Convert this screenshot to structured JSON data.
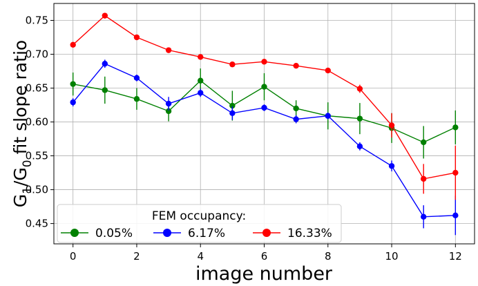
{
  "chart_data": {
    "type": "line",
    "xlabel": "image number",
    "ylabel": "G₁/G₀ fit slope ratio",
    "ylabel_parts": {
      "g1_base": "G",
      "g1_sub": "1",
      "sep": "/",
      "g0_base": "G",
      "g0_sub": "0",
      "rest": " fit slope ratio"
    },
    "xlim": [
      -0.6,
      12.6
    ],
    "ylim": [
      0.42,
      0.775
    ],
    "grid": true,
    "x": [
      0,
      1,
      2,
      3,
      4,
      5,
      6,
      7,
      8,
      9,
      10,
      11,
      12
    ],
    "xticks": [
      0,
      2,
      4,
      6,
      8,
      10,
      12
    ],
    "yticks": [
      0.45,
      0.5,
      0.55,
      0.6,
      0.65,
      0.7,
      0.75
    ],
    "legend": {
      "title": "FEM occupancy:",
      "placement": "lower-left",
      "ncol": 3
    },
    "series": [
      {
        "name": "0.05%",
        "color": "#008000",
        "values": [
          0.656,
          0.647,
          0.634,
          0.616,
          0.661,
          0.624,
          0.652,
          0.62,
          0.609,
          0.605,
          0.591,
          0.57,
          0.592
        ],
        "errors": [
          0.017,
          0.02,
          0.016,
          0.015,
          0.018,
          0.022,
          0.02,
          0.012,
          0.02,
          0.023,
          0.022,
          0.024,
          0.025
        ]
      },
      {
        "name": "6.17%",
        "color": "#0000ff",
        "values": [
          0.629,
          0.686,
          0.665,
          0.627,
          0.643,
          0.613,
          0.621,
          0.604,
          0.609,
          0.564,
          0.535,
          0.46,
          0.462
        ],
        "errors": [
          0.006,
          0.006,
          0.005,
          0.01,
          0.006,
          0.01,
          0.005,
          0.006,
          0.005,
          0.006,
          0.008,
          0.017,
          0.029
        ]
      },
      {
        "name": "16.33%",
        "color": "#ff0000",
        "values": [
          0.714,
          0.757,
          0.725,
          0.706,
          0.696,
          0.685,
          0.689,
          0.683,
          0.676,
          0.649,
          0.595,
          0.516,
          0.525
        ],
        "errors": [
          0.004,
          0.004,
          0.003,
          0.004,
          0.003,
          0.004,
          0.004,
          0.004,
          0.003,
          0.006,
          0.018,
          0.022,
          0.04
        ]
      }
    ]
  }
}
